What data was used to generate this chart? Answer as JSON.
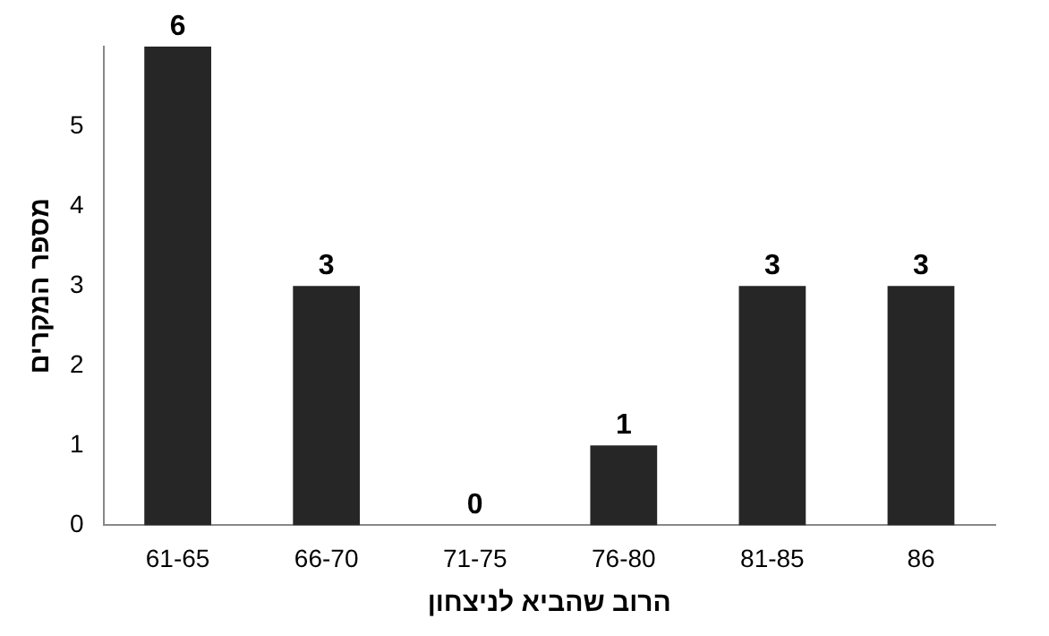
{
  "chart_data": {
    "type": "bar",
    "xlabel": "הרוב שהביא לניצחון",
    "ylabel": "מספר המקרים",
    "categories": [
      "61-65",
      "66-70",
      "71-75",
      "76-80",
      "81-85",
      "86"
    ],
    "values": [
      6,
      3,
      0,
      1,
      3,
      3
    ],
    "color": "#262626",
    "ylim": [
      0,
      6
    ],
    "yticks": [
      0,
      1,
      2,
      3,
      4,
      5
    ],
    "grid": false,
    "legend": false,
    "data_labels": true
  }
}
